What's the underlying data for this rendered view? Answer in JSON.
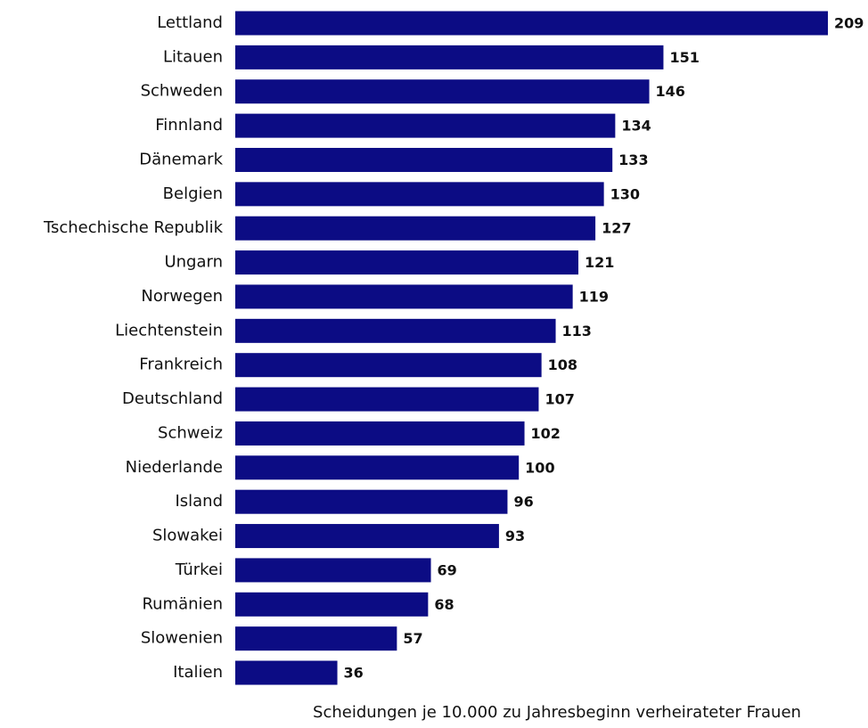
{
  "chart_data": {
    "type": "bar",
    "orientation": "horizontal",
    "x_label": "Scheidungen je 10.000 zu Jahresbeginn verheirateter Frauen",
    "categories": [
      "Lettland",
      "Litauen",
      "Schweden",
      "Finnland",
      "Dänemark",
      "Belgien",
      "Tschechische Republik",
      "Ungarn",
      "Norwegen",
      "Liechtenstein",
      "Frankreich",
      "Deutschland",
      "Schweiz",
      "Niederlande",
      "Island",
      "Slowakei",
      "Türkei",
      "Rumänien",
      "Slowenien",
      "Italien"
    ],
    "values": [
      209,
      151,
      146,
      134,
      133,
      130,
      127,
      121,
      119,
      113,
      108,
      107,
      102,
      100,
      96,
      93,
      69,
      68,
      57,
      36
    ],
    "color": "#0c0c84"
  }
}
